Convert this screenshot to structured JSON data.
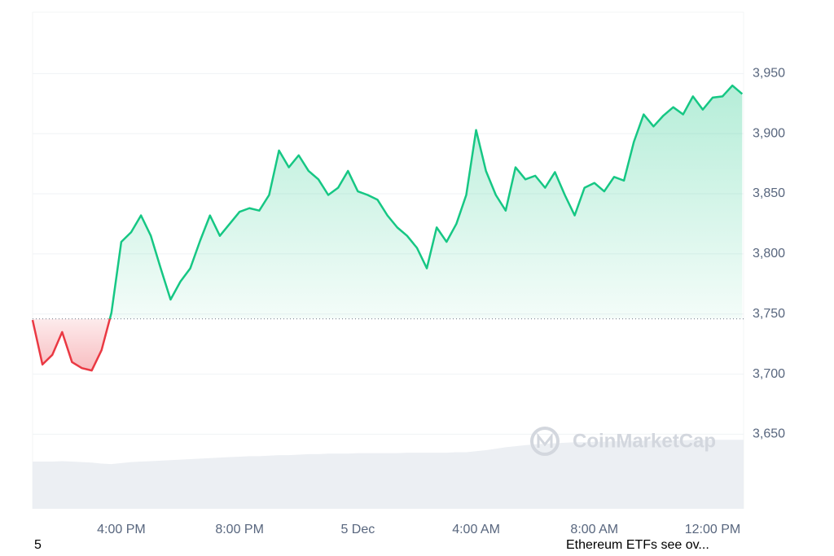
{
  "chart_data": {
    "type": "line",
    "categories": [
      null,
      null,
      null,
      null,
      null,
      null,
      null,
      null,
      null,
      "4:00 PM",
      null,
      null,
      null,
      null,
      null,
      null,
      null,
      null,
      null,
      null,
      null,
      "8:00 PM",
      null,
      null,
      null,
      null,
      null,
      null,
      null,
      null,
      null,
      null,
      null,
      "5 Dec",
      null,
      null,
      null,
      null,
      null,
      null,
      null,
      null,
      null,
      null,
      null,
      "4:00 AM",
      null,
      null,
      null,
      null,
      null,
      null,
      null,
      null,
      null,
      null,
      null,
      "8:00 AM",
      null,
      null,
      null,
      null,
      null,
      null,
      null,
      null,
      null,
      null,
      null,
      "12:00 PM",
      null,
      null,
      null
    ],
    "values": [
      3745,
      3708,
      3716,
      3735,
      3710,
      3705,
      3703,
      3720,
      3751,
      3810,
      3818,
      3832,
      3815,
      3788,
      3762,
      3777,
      3788,
      3811,
      3832,
      3815,
      3825,
      3835,
      3838,
      3836,
      3849,
      3886,
      3872,
      3882,
      3869,
      3862,
      3849,
      3855,
      3869,
      3852,
      3849,
      3845,
      3832,
      3822,
      3815,
      3805,
      3788,
      3822,
      3810,
      3825,
      3849,
      3903,
      3869,
      3849,
      3836,
      3872,
      3862,
      3865,
      3855,
      3868,
      3849,
      3832,
      3855,
      3859,
      3852,
      3864,
      3861,
      3893,
      3916,
      3906,
      3915,
      3922,
      3916,
      3931,
      3920,
      3930,
      3931,
      3940,
      3933
    ],
    "color": "#16c784",
    "down_color": "#ea3943",
    "baseline": 3746,
    "ylim": [
      3588,
      4001
    ],
    "yticks": [
      {
        "value": 3650,
        "label": "3,650"
      },
      {
        "value": 3700,
        "label": "3,700"
      },
      {
        "value": 3750,
        "label": "3,750"
      },
      {
        "value": 3800,
        "label": "3,800"
      },
      {
        "value": 3850,
        "label": "3,850"
      },
      {
        "value": 3900,
        "label": "3,900"
      },
      {
        "value": 3950,
        "label": "3,950"
      }
    ],
    "grid": true,
    "volume": {
      "color": "#eceff3",
      "y2lim": [
        0,
        1000
      ],
      "values": [
        95,
        95,
        95,
        96,
        95,
        94,
        93,
        91,
        90,
        92,
        94,
        95,
        96,
        97,
        98,
        99,
        100,
        101,
        102,
        103,
        104,
        105,
        106,
        106,
        107,
        108,
        108,
        109,
        110,
        110,
        111,
        111,
        111,
        112,
        112,
        112,
        112,
        112,
        113,
        113,
        113,
        113,
        113,
        114,
        114,
        116,
        118,
        121,
        124,
        126,
        128,
        130,
        131,
        132,
        133,
        134,
        134,
        135,
        135,
        136,
        136,
        137,
        137,
        137,
        138,
        138,
        138,
        139,
        139,
        139,
        139,
        139,
        139
      ]
    },
    "watermark": "CoinMarketCap",
    "annotations": [
      {
        "label": "5"
      },
      {
        "label": "Ethereum ETFs see ov..."
      }
    ]
  }
}
